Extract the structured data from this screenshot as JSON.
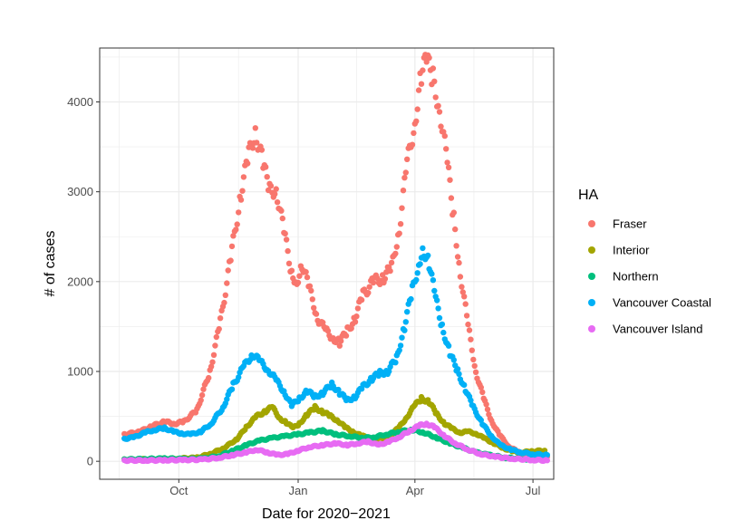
{
  "chart_data": {
    "type": "scatter",
    "xlabel": "Date for 2020−2021",
    "ylabel": "# of cases",
    "x_date_range": [
      "2020-08-01",
      "2021-07-17"
    ],
    "ylim": [
      -200,
      4600
    ],
    "x_ticks": [
      {
        "date": "2020-10-01",
        "label": "Oct"
      },
      {
        "date": "2021-01-01",
        "label": "Jan"
      },
      {
        "date": "2021-04-01",
        "label": "Apr"
      },
      {
        "date": "2021-07-01",
        "label": "Jul"
      }
    ],
    "y_ticks": [
      0,
      1000,
      2000,
      3000,
      4000
    ],
    "grid": true,
    "legend": {
      "title": "HA",
      "position": "right"
    },
    "series": [
      {
        "name": "Fraser",
        "color": "#F8766D",
        "points": [
          [
            "2020-08-20",
            300
          ],
          [
            "2020-09-01",
            330
          ],
          [
            "2020-09-10",
            390
          ],
          [
            "2020-09-20",
            440
          ],
          [
            "2020-09-28",
            420
          ],
          [
            "2020-10-05",
            440
          ],
          [
            "2020-10-15",
            570
          ],
          [
            "2020-10-25",
            1000
          ],
          [
            "2020-11-02",
            1550
          ],
          [
            "2020-11-10",
            2250
          ],
          [
            "2020-11-18",
            3000
          ],
          [
            "2020-11-24",
            3400
          ],
          [
            "2020-11-29",
            3700
          ],
          [
            "2020-12-05",
            3300
          ],
          [
            "2020-12-10",
            3000
          ],
          [
            "2020-12-15",
            3050
          ],
          [
            "2020-12-21",
            2550
          ],
          [
            "2020-12-27",
            2100
          ],
          [
            "2020-12-31",
            2000
          ],
          [
            "2021-01-04",
            2200
          ],
          [
            "2021-01-10",
            1900
          ],
          [
            "2021-01-16",
            1600
          ],
          [
            "2021-01-22",
            1450
          ],
          [
            "2021-01-28",
            1380
          ],
          [
            "2021-02-02",
            1320
          ],
          [
            "2021-02-08",
            1450
          ],
          [
            "2021-02-14",
            1600
          ],
          [
            "2021-02-20",
            1850
          ],
          [
            "2021-02-28",
            2000
          ],
          [
            "2021-03-08",
            2050
          ],
          [
            "2021-03-14",
            2150
          ],
          [
            "2021-03-20",
            2600
          ],
          [
            "2021-03-26",
            3300
          ],
          [
            "2021-04-01",
            3800
          ],
          [
            "2021-04-06",
            4300
          ],
          [
            "2021-04-10",
            4450
          ],
          [
            "2021-04-15",
            4250
          ],
          [
            "2021-04-20",
            3950
          ],
          [
            "2021-04-26",
            3300
          ],
          [
            "2021-05-01",
            2700
          ],
          [
            "2021-05-06",
            2100
          ],
          [
            "2021-05-12",
            1500
          ],
          [
            "2021-05-18",
            1000
          ],
          [
            "2021-05-24",
            700
          ],
          [
            "2021-05-30",
            450
          ],
          [
            "2021-06-05",
            300
          ],
          [
            "2021-06-12",
            170
          ],
          [
            "2021-06-20",
            100
          ],
          [
            "2021-06-28",
            80
          ],
          [
            "2021-07-05",
            60
          ],
          [
            "2021-07-12",
            50
          ]
        ]
      },
      {
        "name": "Interior",
        "color": "#A3A500",
        "points": [
          [
            "2020-08-20",
            20
          ],
          [
            "2020-09-01",
            20
          ],
          [
            "2020-09-15",
            25
          ],
          [
            "2020-10-01",
            30
          ],
          [
            "2020-10-15",
            40
          ],
          [
            "2020-10-25",
            80
          ],
          [
            "2020-11-05",
            150
          ],
          [
            "2020-11-15",
            250
          ],
          [
            "2020-11-22",
            380
          ],
          [
            "2020-11-30",
            500
          ],
          [
            "2020-12-07",
            560
          ],
          [
            "2020-12-12",
            600
          ],
          [
            "2020-12-18",
            480
          ],
          [
            "2020-12-23",
            430
          ],
          [
            "2020-12-28",
            370
          ],
          [
            "2021-01-02",
            420
          ],
          [
            "2021-01-08",
            520
          ],
          [
            "2021-01-14",
            600
          ],
          [
            "2021-01-20",
            550
          ],
          [
            "2021-01-26",
            500
          ],
          [
            "2021-02-01",
            450
          ],
          [
            "2021-02-06",
            380
          ],
          [
            "2021-02-12",
            330
          ],
          [
            "2021-02-18",
            290
          ],
          [
            "2021-02-24",
            260
          ],
          [
            "2021-03-02",
            250
          ],
          [
            "2021-03-08",
            260
          ],
          [
            "2021-03-14",
            300
          ],
          [
            "2021-03-20",
            380
          ],
          [
            "2021-03-26",
            500
          ],
          [
            "2021-04-01",
            620
          ],
          [
            "2021-04-06",
            700
          ],
          [
            "2021-04-12",
            660
          ],
          [
            "2021-04-18",
            520
          ],
          [
            "2021-04-24",
            420
          ],
          [
            "2021-04-30",
            360
          ],
          [
            "2021-05-06",
            320
          ],
          [
            "2021-05-12",
            330
          ],
          [
            "2021-05-18",
            310
          ],
          [
            "2021-05-24",
            260
          ],
          [
            "2021-06-01",
            200
          ],
          [
            "2021-06-08",
            150
          ],
          [
            "2021-06-15",
            110
          ],
          [
            "2021-06-22",
            100
          ],
          [
            "2021-06-30",
            110
          ],
          [
            "2021-07-10",
            120
          ]
        ]
      },
      {
        "name": "Northern",
        "color": "#00BF7D",
        "points": [
          [
            "2020-08-20",
            20
          ],
          [
            "2020-09-05",
            25
          ],
          [
            "2020-09-20",
            30
          ],
          [
            "2020-10-05",
            25
          ],
          [
            "2020-10-20",
            30
          ],
          [
            "2020-11-01",
            60
          ],
          [
            "2020-11-12",
            120
          ],
          [
            "2020-11-22",
            180
          ],
          [
            "2020-12-02",
            230
          ],
          [
            "2020-12-12",
            260
          ],
          [
            "2020-12-22",
            280
          ],
          [
            "2021-01-01",
            300
          ],
          [
            "2021-01-10",
            320
          ],
          [
            "2021-01-20",
            340
          ],
          [
            "2021-01-30",
            300
          ],
          [
            "2021-02-10",
            280
          ],
          [
            "2021-02-20",
            260
          ],
          [
            "2021-03-01",
            270
          ],
          [
            "2021-03-10",
            300
          ],
          [
            "2021-03-20",
            330
          ],
          [
            "2021-03-30",
            350
          ],
          [
            "2021-04-08",
            320
          ],
          [
            "2021-04-18",
            260
          ],
          [
            "2021-04-28",
            200
          ],
          [
            "2021-05-08",
            150
          ],
          [
            "2021-05-18",
            100
          ],
          [
            "2021-05-28",
            70
          ],
          [
            "2021-06-10",
            40
          ],
          [
            "2021-06-25",
            25
          ],
          [
            "2021-07-10",
            15
          ]
        ]
      },
      {
        "name": "Vancouver Coastal",
        "color": "#00B0F6",
        "points": [
          [
            "2020-08-20",
            250
          ],
          [
            "2020-08-28",
            270
          ],
          [
            "2020-09-05",
            320
          ],
          [
            "2020-09-12",
            350
          ],
          [
            "2020-09-20",
            370
          ],
          [
            "2020-09-27",
            330
          ],
          [
            "2020-10-03",
            310
          ],
          [
            "2020-10-10",
            300
          ],
          [
            "2020-10-18",
            330
          ],
          [
            "2020-10-26",
            420
          ],
          [
            "2020-11-04",
            600
          ],
          [
            "2020-11-12",
            850
          ],
          [
            "2020-11-20",
            1050
          ],
          [
            "2020-11-27",
            1200
          ],
          [
            "2020-12-03",
            1100
          ],
          [
            "2020-12-09",
            1020
          ],
          [
            "2020-12-15",
            900
          ],
          [
            "2020-12-21",
            780
          ],
          [
            "2020-12-27",
            620
          ],
          [
            "2021-01-02",
            700
          ],
          [
            "2021-01-08",
            780
          ],
          [
            "2021-01-14",
            720
          ],
          [
            "2021-01-20",
            760
          ],
          [
            "2021-01-27",
            860
          ],
          [
            "2021-02-02",
            760
          ],
          [
            "2021-02-08",
            680
          ],
          [
            "2021-02-14",
            720
          ],
          [
            "2021-02-20",
            830
          ],
          [
            "2021-02-27",
            920
          ],
          [
            "2021-03-05",
            980
          ],
          [
            "2021-03-11",
            1000
          ],
          [
            "2021-03-18",
            1150
          ],
          [
            "2021-03-24",
            1500
          ],
          [
            "2021-03-30",
            1900
          ],
          [
            "2021-04-04",
            2200
          ],
          [
            "2021-04-07",
            2380
          ],
          [
            "2021-04-12",
            2200
          ],
          [
            "2021-04-17",
            1800
          ],
          [
            "2021-04-22",
            1500
          ],
          [
            "2021-04-28",
            1200
          ],
          [
            "2021-05-04",
            1000
          ],
          [
            "2021-05-10",
            800
          ],
          [
            "2021-05-16",
            600
          ],
          [
            "2021-05-23",
            420
          ],
          [
            "2021-05-30",
            280
          ],
          [
            "2021-06-06",
            180
          ],
          [
            "2021-06-14",
            130
          ],
          [
            "2021-06-22",
            100
          ],
          [
            "2021-07-01",
            80
          ],
          [
            "2021-07-12",
            70
          ]
        ]
      },
      {
        "name": "Vancouver Island",
        "color": "#E76BF3",
        "points": [
          [
            "2020-08-20",
            10
          ],
          [
            "2020-09-05",
            10
          ],
          [
            "2020-09-20",
            12
          ],
          [
            "2020-10-05",
            15
          ],
          [
            "2020-10-20",
            20
          ],
          [
            "2020-11-01",
            40
          ],
          [
            "2020-11-12",
            70
          ],
          [
            "2020-11-22",
            100
          ],
          [
            "2020-11-30",
            130
          ],
          [
            "2020-12-08",
            100
          ],
          [
            "2020-12-16",
            70
          ],
          [
            "2020-12-24",
            80
          ],
          [
            "2021-01-01",
            120
          ],
          [
            "2021-01-10",
            160
          ],
          [
            "2021-01-20",
            180
          ],
          [
            "2021-01-30",
            200
          ],
          [
            "2021-02-08",
            180
          ],
          [
            "2021-02-16",
            200
          ],
          [
            "2021-02-24",
            220
          ],
          [
            "2021-03-04",
            180
          ],
          [
            "2021-03-12",
            220
          ],
          [
            "2021-03-20",
            270
          ],
          [
            "2021-03-28",
            340
          ],
          [
            "2021-04-05",
            400
          ],
          [
            "2021-04-10",
            420
          ],
          [
            "2021-04-16",
            380
          ],
          [
            "2021-04-24",
            280
          ],
          [
            "2021-05-02",
            200
          ],
          [
            "2021-05-12",
            130
          ],
          [
            "2021-05-22",
            80
          ],
          [
            "2021-06-02",
            50
          ],
          [
            "2021-06-15",
            30
          ],
          [
            "2021-07-01",
            15
          ],
          [
            "2021-07-12",
            10
          ]
        ]
      }
    ]
  }
}
